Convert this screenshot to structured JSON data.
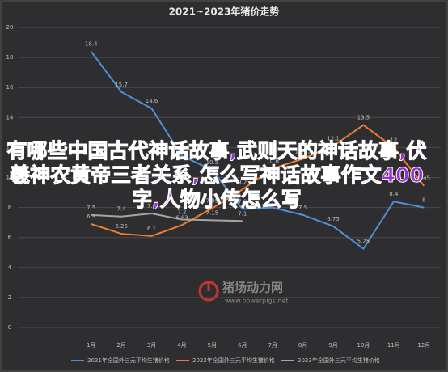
{
  "chart_data": {
    "type": "line",
    "title": "2021~2023年猪价走势",
    "categories": [
      "1月",
      "2月",
      "3月",
      "4月",
      "5月",
      "6月",
      "7月",
      "8月",
      "9月",
      "10月",
      "11月",
      "12月"
    ],
    "ylim": [
      0,
      20
    ],
    "yticks": [
      0,
      2,
      4,
      6,
      8,
      10,
      12,
      14,
      16,
      18,
      20
    ],
    "grid": true,
    "legend": "bottom",
    "series": [
      {
        "name": "2021年全国外三元平均生猪价格",
        "color": "#4f8fd6",
        "values": [
          18.4,
          15.7,
          14.6,
          11.45,
          10.5,
          7.9,
          8,
          7.5,
          6.75,
          5.25,
          8.4,
          8
        ]
      },
      {
        "name": "2022年全国外三元平均生猪价格",
        "color": "#ed7d31",
        "values": [
          6.9,
          6.25,
          6.1,
          6.83,
          7.95,
          9.2,
          10.6,
          11.25,
          12.1,
          13.5,
          12,
          9.45
        ]
      },
      {
        "name": "2023年全国外三元平均生猪价格",
        "color": "#a5a5a5",
        "values": [
          7.5,
          7.4,
          7.6,
          7.2,
          7.15,
          7.1,
          null,
          null,
          null,
          null,
          null,
          null
        ]
      }
    ],
    "watermark": [
      "猪场动力网",
      "www.powerpigs.net"
    ],
    "overlay_text": "有哪些中国古代神话故事,武则天的神话故事,伏羲神农黄帝三者关系,怎么写神话故事作文400字,人物小传怎么写"
  }
}
